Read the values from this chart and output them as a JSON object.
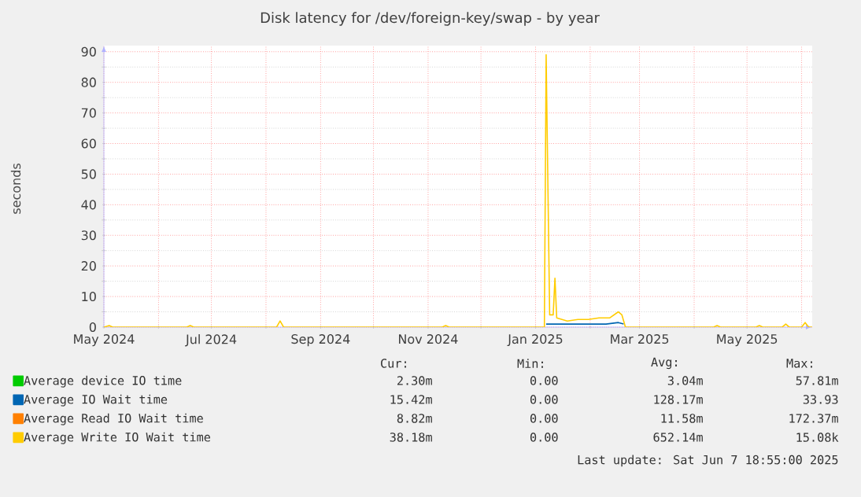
{
  "chart_data": {
    "type": "line",
    "title": "Disk latency for /dev/foreign-key/swap - by year",
    "ylabel": "seconds",
    "xlim": [
      "2024-05-01",
      "2025-06-07"
    ],
    "ylim": [
      0,
      92
    ],
    "yticks": [
      0,
      10,
      20,
      30,
      40,
      50,
      60,
      70,
      80,
      90
    ],
    "xticks": [
      {
        "value": "2024-05-01",
        "label": "May 2024"
      },
      {
        "value": "2024-06-01",
        "label": null
      },
      {
        "value": "2024-07-01",
        "label": "Jul 2024"
      },
      {
        "value": "2024-08-01",
        "label": null
      },
      {
        "value": "2024-09-01",
        "label": "Sep 2024"
      },
      {
        "value": "2024-10-01",
        "label": null
      },
      {
        "value": "2024-11-01",
        "label": "Nov 2024"
      },
      {
        "value": "2024-12-01",
        "label": null
      },
      {
        "value": "2025-01-01",
        "label": "Jan 2025"
      },
      {
        "value": "2025-02-01",
        "label": null
      },
      {
        "value": "2025-03-01",
        "label": "Mar 2025"
      },
      {
        "value": "2025-04-01",
        "label": null
      },
      {
        "value": "2025-05-01",
        "label": "May 2025"
      },
      {
        "value": "2025-06-01",
        "label": null
      }
    ],
    "grid": true,
    "legend": "bottom",
    "series": [
      {
        "name": "Average device IO time",
        "color": "#00cc00",
        "values": [
          null
        ]
      },
      {
        "name": "Average IO Wait time",
        "color": "#0066b3",
        "x": [
          "2025-01-07",
          "2025-01-20",
          "2025-02-10",
          "2025-02-17",
          "2025-02-20"
        ],
        "values": [
          1,
          1,
          1,
          1.5,
          1
        ]
      },
      {
        "name": "Average Read IO Wait time",
        "color": "#ff8000",
        "values": [
          null
        ]
      },
      {
        "name": "Average Write IO Wait time",
        "color": "#ffcc00",
        "x": [
          "2024-05-01",
          "2024-05-04",
          "2024-05-06",
          "2024-06-17",
          "2024-06-19",
          "2024-06-21",
          "2024-08-07",
          "2024-08-09",
          "2024-08-11",
          "2024-11-09",
          "2024-11-11",
          "2024-11-13",
          "2025-01-06",
          "2025-01-07",
          "2025-01-09",
          "2025-01-11",
          "2025-01-12",
          "2025-01-13",
          "2025-01-16",
          "2025-01-19",
          "2025-01-25",
          "2025-01-31",
          "2025-02-06",
          "2025-02-12",
          "2025-02-17",
          "2025-02-19",
          "2025-02-21",
          "2025-04-12",
          "2025-04-14",
          "2025-04-16",
          "2025-05-06",
          "2025-05-08",
          "2025-05-10",
          "2025-05-21",
          "2025-05-23",
          "2025-05-25",
          "2025-06-01",
          "2025-06-03",
          "2025-06-05",
          "2025-06-07"
        ],
        "values": [
          0,
          0.5,
          0,
          0,
          0.5,
          0,
          0,
          2,
          0,
          0,
          0.5,
          0,
          0,
          89,
          4,
          4,
          16,
          3,
          2.5,
          2,
          2.5,
          2.5,
          3,
          3,
          5,
          4,
          0,
          0,
          0.5,
          0,
          0,
          0.5,
          0,
          0,
          1,
          0,
          0,
          1.5,
          0,
          0
        ]
      }
    ],
    "annotations": [
      "Cur:",
      "Min:",
      "Avg:",
      "Max:",
      "2.30m",
      "0.00",
      "3.04m",
      "57.81m",
      "15.42m",
      "0.00",
      "128.17m",
      "33.93",
      "8.82m",
      "0.00",
      "11.58m",
      "172.37m",
      "38.18m",
      "0.00",
      "652.14m",
      "15.08k",
      "Last update:  Sat Jun  7 18:55:00 2025"
    ]
  }
}
